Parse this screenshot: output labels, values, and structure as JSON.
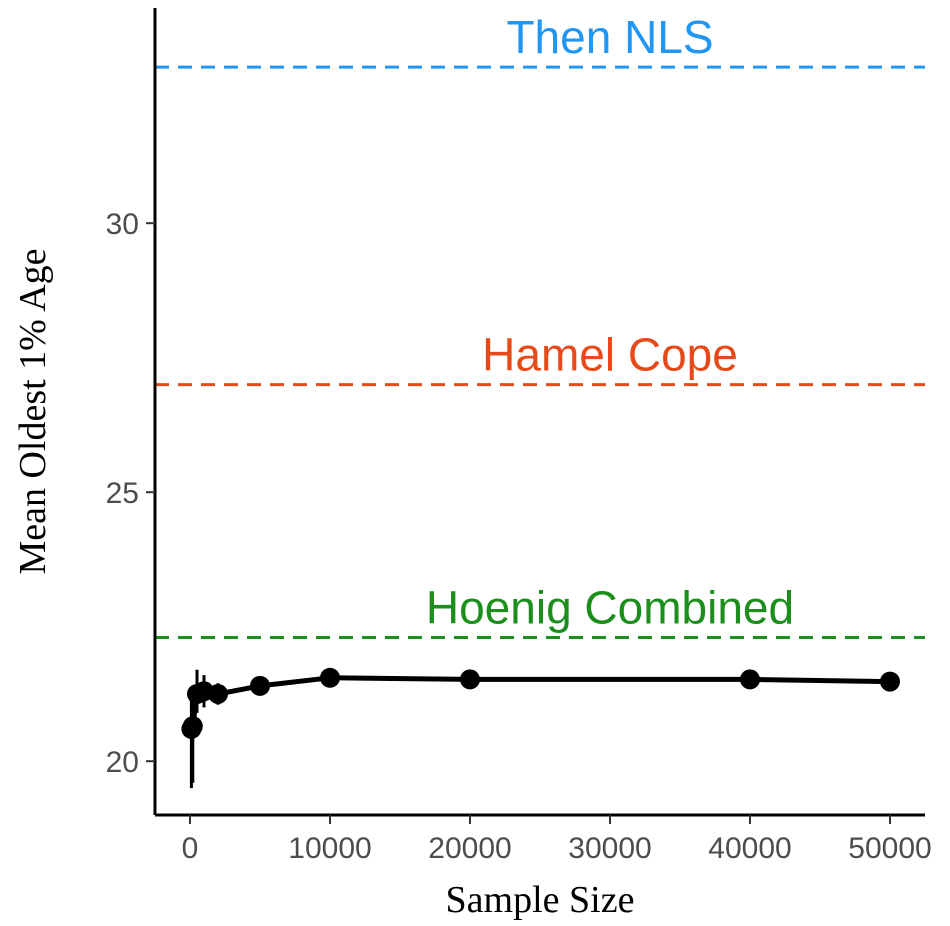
{
  "chart_data": {
    "type": "line",
    "title": "",
    "xlabel": "Sample Size",
    "ylabel": "Mean Oldest 1% Age",
    "xlim": [
      -2500,
      52500
    ],
    "ylim": [
      19,
      34
    ],
    "x_ticks": [
      0,
      10000,
      20000,
      30000,
      40000,
      50000
    ],
    "x_tick_labels": [
      "0",
      "10000",
      "20000",
      "30000",
      "40000",
      "50000"
    ],
    "y_ticks": [
      20,
      25,
      30
    ],
    "y_tick_labels": [
      "20",
      "25",
      "30"
    ],
    "grid": false,
    "legend": "none",
    "series": [
      {
        "color": "#000000",
        "points": [
          {
            "x": 100,
            "y": 20.6,
            "lo": 19.5,
            "hi": 21.2
          },
          {
            "x": 200,
            "y": 20.65,
            "lo": 19.6,
            "hi": 21.3
          },
          {
            "x": 500,
            "y": 21.25,
            "lo": 20.9,
            "hi": 21.7
          },
          {
            "x": 1000,
            "y": 21.3,
            "lo": 21.0,
            "hi": 21.6
          },
          {
            "x": 2000,
            "y": 21.25,
            "lo": 21.05,
            "hi": 21.45
          },
          {
            "x": 5000,
            "y": 21.4,
            "lo": 21.3,
            "hi": 21.5
          },
          {
            "x": 10000,
            "y": 21.55,
            "lo": 21.5,
            "hi": 21.6
          },
          {
            "x": 20000,
            "y": 21.52,
            "lo": 21.49,
            "hi": 21.55
          },
          {
            "x": 40000,
            "y": 21.52,
            "lo": 21.5,
            "hi": 21.54
          },
          {
            "x": 50000,
            "y": 21.48,
            "lo": 21.46,
            "hi": 21.5
          }
        ]
      }
    ],
    "reference_lines": [
      {
        "label": "Then NLS",
        "y": 32.9,
        "color": "#2196F3"
      },
      {
        "label": "Hamel Cope",
        "y": 27.0,
        "color": "#E64A19"
      },
      {
        "label": "Hoenig Combined",
        "y": 22.3,
        "color": "#1B8E1B"
      }
    ]
  }
}
